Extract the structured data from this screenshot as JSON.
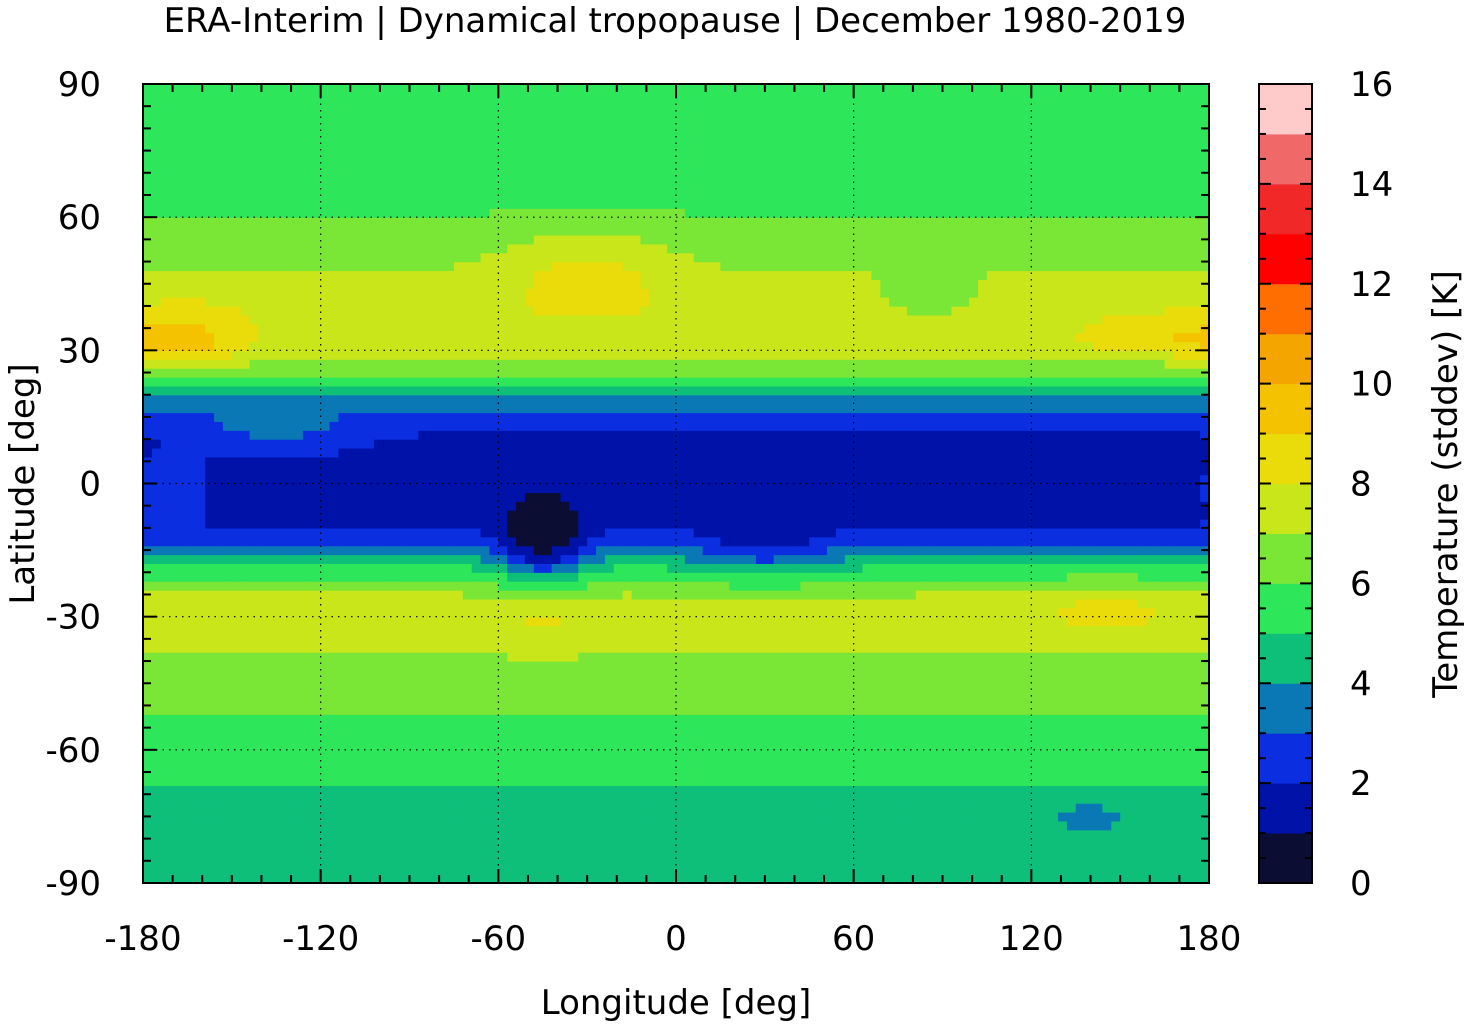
{
  "chart_data": {
    "type": "heatmap",
    "title": "ERA-Interim | Dynamical tropopause | December 1980-2019",
    "xlabel": "Longitude [deg]",
    "ylabel": "Latitude [deg]",
    "xlim": [
      -180,
      180
    ],
    "ylim": [
      -90,
      90
    ],
    "x_ticks": [
      -180,
      -120,
      -60,
      0,
      60,
      120,
      180
    ],
    "y_ticks": [
      -90,
      -60,
      -30,
      0,
      30,
      60,
      90
    ],
    "grid": true,
    "colorbar": {
      "label": "Temperature (stddev) [K]",
      "range": [
        0,
        16
      ],
      "ticks": [
        0,
        2,
        4,
        6,
        8,
        10,
        12,
        14,
        16
      ],
      "levels": [
        {
          "from": 0,
          "to": 1,
          "color": "#0b0d33"
        },
        {
          "from": 1,
          "to": 2,
          "color": "#0012a8"
        },
        {
          "from": 2,
          "to": 3,
          "color": "#0a2ee0"
        },
        {
          "from": 3,
          "to": 4,
          "color": "#0a78b4"
        },
        {
          "from": 4,
          "to": 5,
          "color": "#0ebf7a"
        },
        {
          "from": 5,
          "to": 6,
          "color": "#2ee65a"
        },
        {
          "from": 6,
          "to": 7,
          "color": "#7ae636"
        },
        {
          "from": 7,
          "to": 8,
          "color": "#c8e61a"
        },
        {
          "from": 8,
          "to": 9,
          "color": "#eadc0a"
        },
        {
          "from": 9,
          "to": 10,
          "color": "#f5c200"
        },
        {
          "from": 10,
          "to": 11,
          "color": "#f5a500"
        },
        {
          "from": 11,
          "to": 12,
          "color": "#ff6e00"
        },
        {
          "from": 12,
          "to": 13,
          "color": "#ff0000"
        },
        {
          "from": 13,
          "to": 14,
          "color": "#f02828"
        },
        {
          "from": 14,
          "to": 15,
          "color": "#f06868"
        },
        {
          "from": 15,
          "to": 16,
          "color": "#ffcaca"
        }
      ]
    },
    "zonal_profile": [
      {
        "lat": 90,
        "value": 5.2
      },
      {
        "lat": 80,
        "value": 5.0
      },
      {
        "lat": 70,
        "value": 5.3
      },
      {
        "lat": 60,
        "value": 6.0
      },
      {
        "lat": 50,
        "value": 6.8
      },
      {
        "lat": 40,
        "value": 7.6
      },
      {
        "lat": 30,
        "value": 7.3
      },
      {
        "lat": 25,
        "value": 6.0
      },
      {
        "lat": 20,
        "value": 4.0
      },
      {
        "lat": 15,
        "value": 2.5
      },
      {
        "lat": 10,
        "value": 1.8
      },
      {
        "lat": 0,
        "value": 1.6
      },
      {
        "lat": -10,
        "value": 2.0
      },
      {
        "lat": -15,
        "value": 3.5
      },
      {
        "lat": -20,
        "value": 5.5
      },
      {
        "lat": -25,
        "value": 7.0
      },
      {
        "lat": -30,
        "value": 7.5
      },
      {
        "lat": -40,
        "value": 6.8
      },
      {
        "lat": -50,
        "value": 6.2
      },
      {
        "lat": -55,
        "value": 5.6
      },
      {
        "lat": -60,
        "value": 5.6
      },
      {
        "lat": -65,
        "value": 5.2
      },
      {
        "lat": -70,
        "value": 4.8
      },
      {
        "lat": -80,
        "value": 4.6
      },
      {
        "lat": -90,
        "value": 4.7
      }
    ]
  }
}
